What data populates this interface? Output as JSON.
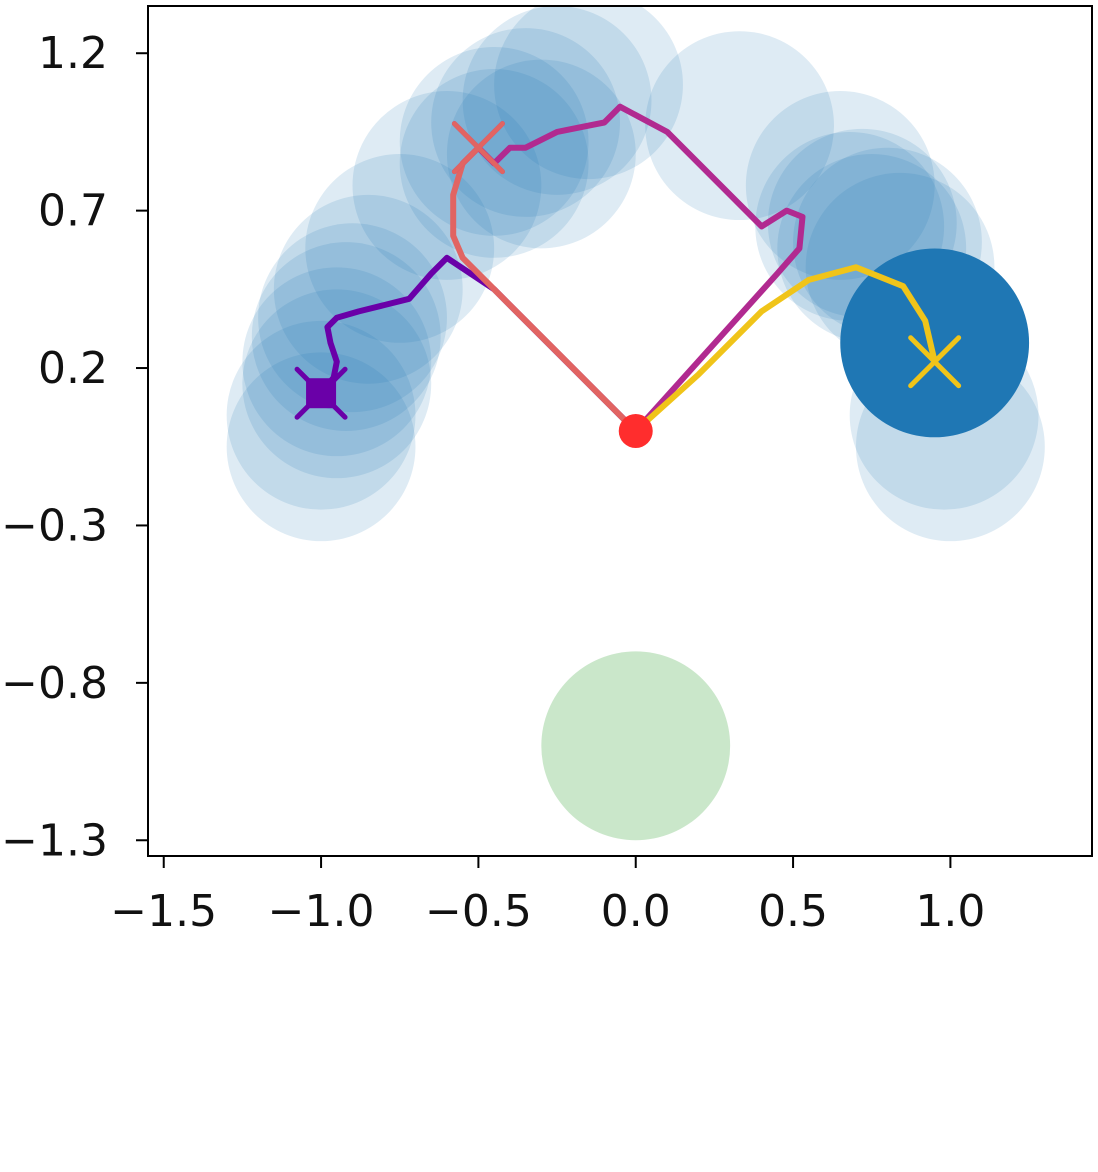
{
  "chart_data": {
    "type": "scatter",
    "title": "",
    "xlabel": "",
    "ylabel": "",
    "xlim": [
      -1.55,
      1.45
    ],
    "ylim": [
      -1.35,
      1.35
    ],
    "xticks": [
      -1.5,
      -1.0,
      -0.5,
      0.0,
      0.5,
      1.0
    ],
    "xtick_labels": [
      "−1.5",
      "−1.0",
      "−0.5",
      "0.0",
      "0.5",
      "1.0"
    ],
    "yticks": [
      1.2,
      0.7,
      0.2,
      -0.3,
      -0.8,
      -1.3
    ],
    "ytick_labels": [
      "1.2",
      "0.7",
      "0.2",
      "−0.3",
      "−0.8",
      "−1.3"
    ],
    "grid": false,
    "legend": "none",
    "circle_radius": 0.3,
    "circles": [
      {
        "x": -1.0,
        "y": -0.05,
        "color": "#1f77b4",
        "opacity": 0.15
      },
      {
        "x": -1.0,
        "y": 0.05,
        "color": "#1f77b4",
        "opacity": 0.15
      },
      {
        "x": -0.95,
        "y": 0.15,
        "color": "#1f77b4",
        "opacity": 0.15
      },
      {
        "x": -0.95,
        "y": 0.22,
        "color": "#1f77b4",
        "opacity": 0.15
      },
      {
        "x": -0.92,
        "y": 0.3,
        "color": "#1f77b4",
        "opacity": 0.15
      },
      {
        "x": -0.9,
        "y": 0.36,
        "color": "#1f77b4",
        "opacity": 0.15
      },
      {
        "x": -0.85,
        "y": 0.45,
        "color": "#1f77b4",
        "opacity": 0.15
      },
      {
        "x": -0.75,
        "y": 0.58,
        "color": "#1f77b4",
        "opacity": 0.15
      },
      {
        "x": -0.6,
        "y": 0.78,
        "color": "#1f77b4",
        "opacity": 0.15
      },
      {
        "x": -0.45,
        "y": 0.92,
        "color": "#1f77b4",
        "opacity": 0.15
      },
      {
        "x": -0.45,
        "y": 0.85,
        "color": "#1f77b4",
        "opacity": 0.15
      },
      {
        "x": -0.35,
        "y": 0.98,
        "color": "#1f77b4",
        "opacity": 0.15
      },
      {
        "x": -0.25,
        "y": 1.05,
        "color": "#1f77b4",
        "opacity": 0.15
      },
      {
        "x": -0.3,
        "y": 0.88,
        "color": "#1f77b4",
        "opacity": 0.15
      },
      {
        "x": -0.15,
        "y": 1.1,
        "color": "#1f77b4",
        "opacity": 0.15
      },
      {
        "x": 0.33,
        "y": 0.97,
        "color": "#1f77b4",
        "opacity": 0.15
      },
      {
        "x": 0.65,
        "y": 0.78,
        "color": "#1f77b4",
        "opacity": 0.15
      },
      {
        "x": 0.68,
        "y": 0.65,
        "color": "#1f77b4",
        "opacity": 0.15
      },
      {
        "x": 0.72,
        "y": 0.66,
        "color": "#1f77b4",
        "opacity": 0.15
      },
      {
        "x": 0.75,
        "y": 0.58,
        "color": "#1f77b4",
        "opacity": 0.15
      },
      {
        "x": 0.8,
        "y": 0.6,
        "color": "#1f77b4",
        "opacity": 0.15
      },
      {
        "x": 0.84,
        "y": 0.52,
        "color": "#1f77b4",
        "opacity": 0.15
      },
      {
        "x": 0.98,
        "y": 0.05,
        "color": "#1f77b4",
        "opacity": 0.15
      },
      {
        "x": 1.0,
        "y": -0.05,
        "color": "#1f77b4",
        "opacity": 0.15
      },
      {
        "x": 0.95,
        "y": 0.28,
        "color": "#1f77b4",
        "opacity": 1.0
      },
      {
        "x": 0.0,
        "y": -1.0,
        "color": "#2ca02c",
        "opacity": 0.25
      }
    ],
    "series": [
      {
        "color": "#6a00a8",
        "points": [
          [
            0.0,
            0.0
          ],
          [
            -0.45,
            0.45
          ],
          [
            -0.6,
            0.55
          ],
          [
            -0.65,
            0.5
          ],
          [
            -0.72,
            0.42
          ],
          [
            -0.8,
            0.4
          ],
          [
            -0.88,
            0.38
          ],
          [
            -0.95,
            0.36
          ],
          [
            -0.98,
            0.33
          ],
          [
            -0.97,
            0.28
          ],
          [
            -0.95,
            0.22
          ],
          [
            -0.96,
            0.17
          ],
          [
            -1.0,
            0.12
          ]
        ],
        "end": [
          -1.0,
          0.12
        ],
        "end_marker": "square-x"
      },
      {
        "color": "#b12a90",
        "points": [
          [
            0.0,
            0.0
          ],
          [
            0.45,
            0.5
          ],
          [
            0.52,
            0.58
          ],
          [
            0.53,
            0.68
          ],
          [
            0.48,
            0.7
          ],
          [
            0.4,
            0.65
          ],
          [
            0.25,
            0.8
          ],
          [
            0.1,
            0.95
          ],
          [
            -0.05,
            1.03
          ],
          [
            -0.1,
            0.98
          ],
          [
            -0.25,
            0.95
          ],
          [
            -0.35,
            0.9
          ],
          [
            -0.4,
            0.9
          ],
          [
            -0.45,
            0.85
          ],
          [
            -0.5,
            0.9
          ]
        ],
        "end": [
          -0.5,
          0.9
        ],
        "end_marker": "x"
      },
      {
        "color": "#e16462",
        "points": [
          [
            0.0,
            0.0
          ],
          [
            -0.25,
            0.25
          ],
          [
            -0.45,
            0.45
          ],
          [
            -0.55,
            0.55
          ],
          [
            -0.58,
            0.62
          ],
          [
            -0.58,
            0.75
          ],
          [
            -0.55,
            0.85
          ],
          [
            -0.5,
            0.9
          ]
        ],
        "end": [
          -0.5,
          0.9
        ],
        "end_marker": "x"
      },
      {
        "color": "#f0c419",
        "points": [
          [
            0.0,
            0.0
          ],
          [
            0.2,
            0.18
          ],
          [
            0.4,
            0.38
          ],
          [
            0.55,
            0.48
          ],
          [
            0.7,
            0.52
          ],
          [
            0.85,
            0.46
          ],
          [
            0.92,
            0.35
          ],
          [
            0.95,
            0.22
          ]
        ],
        "end": [
          0.95,
          0.22
        ],
        "end_marker": "x"
      }
    ],
    "origin": {
      "x": 0.0,
      "y": 0.0,
      "color": "#ff2d2d"
    }
  }
}
